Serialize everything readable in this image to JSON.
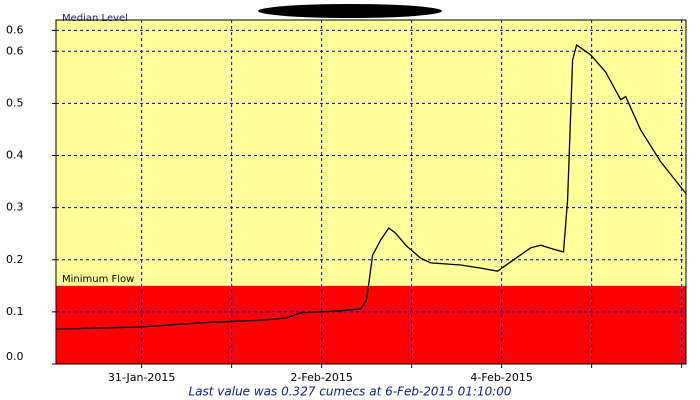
{
  "chart_data": {
    "type": "line",
    "median_label": "Median Level",
    "minimum_label": "Minimum Flow",
    "minimum_flow": 0.15,
    "above_color": "#ffff99",
    "below_color": "#ff0000",
    "grid_color": "#0000cc",
    "footer": "Last value was 0.327 cumecs at  6-Feb-2015 01:10:00",
    "xlim": [
      "2015-01-30T01:10",
      "2015-02-06T01:10"
    ],
    "xticks": [
      {
        "value": "2015-01-31T00:00",
        "label": "31-Jan-2015"
      },
      {
        "value": "2015-02-01T00:00",
        "label": null
      },
      {
        "value": "2015-02-02T00:00",
        "label": "2-Feb-2015"
      },
      {
        "value": "2015-02-03T00:00",
        "label": null
      },
      {
        "value": "2015-02-04T00:00",
        "label": "4-Feb-2015"
      },
      {
        "value": "2015-02-05T00:00",
        "label": null
      },
      {
        "value": "2015-02-06T00:00",
        "label": null
      }
    ],
    "ylim": [
      0,
      0.66
    ],
    "yticks": [
      {
        "value": 0,
        "label": "0.0"
      },
      0.1,
      0.2,
      0.3,
      0.4,
      0.5,
      {
        "value": 0.6,
        "label": "0.6"
      },
      {
        "value": 0.64,
        "label": "0.6"
      }
    ],
    "series": [
      {
        "color": "#000000",
        "x": [
          "2015-01-30T01:10",
          "2015-01-30T23:45",
          "2015-01-31T15:45",
          "2015-02-01T07:45",
          "2015-02-01T14:25",
          "2015-02-01T18:25",
          "2015-02-02T05:05",
          "2015-02-02T10:25",
          "2015-02-02T12:00",
          "2015-02-02T13:35",
          "2015-02-02T15:45",
          "2015-02-02T17:55",
          "2015-02-02T19:45",
          "2015-02-02T22:25",
          "2015-02-03T02:25",
          "2015-02-03T05:05",
          "2015-02-03T13:05",
          "2015-02-03T18:25",
          "2015-02-03T22:55",
          "2015-02-04T02:25",
          "2015-02-04T07:45",
          "2015-02-04T10:25",
          "2015-02-04T14:25",
          "2015-02-04T16:30",
          "2015-02-04T17:35",
          "2015-02-04T18:55",
          "2015-02-04T20:00",
          "2015-02-04T23:45",
          "2015-02-05T03:45",
          "2015-02-05T07:45",
          "2015-02-05T09:05",
          "2015-02-05T13:05",
          "2015-02-05T18:25",
          "2015-02-06T01:10"
        ],
        "values": [
          0.067,
          0.071,
          0.079,
          0.084,
          0.088,
          0.098,
          0.102,
          0.106,
          0.123,
          0.209,
          0.238,
          0.261,
          0.251,
          0.228,
          0.203,
          0.194,
          0.19,
          0.184,
          0.178,
          0.196,
          0.223,
          0.228,
          0.219,
          0.215,
          0.315,
          0.583,
          0.612,
          0.593,
          0.56,
          0.507,
          0.513,
          0.449,
          0.388,
          0.327
        ]
      }
    ]
  }
}
